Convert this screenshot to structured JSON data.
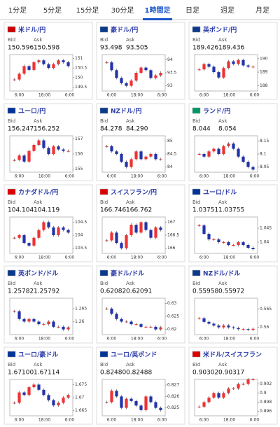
{
  "tabs": [
    "1分足",
    "5分足",
    "15分足",
    "30分足",
    "1時間足",
    "日足",
    "週足",
    "月足"
  ],
  "active_tab": 4,
  "labels": {
    "bid": "Bid",
    "ask": "Ask"
  },
  "xlabels": [
    "6:00",
    "18:00",
    "6:00"
  ],
  "panels": [
    {
      "title": "米ドル/円",
      "bid": "150.596",
      "ask": "150.598",
      "ylim": [
        149.3,
        151.2
      ],
      "yticks": [
        151,
        150.5,
        150,
        149.5
      ],
      "closes": [
        149.9,
        150.2,
        150.6,
        150.4,
        150.8,
        150.9,
        150.7,
        150.5,
        150.7,
        150.9,
        150.8,
        150.6
      ]
    },
    {
      "title": "豪ドル/円",
      "bid": "93.498",
      "ask": "93.505",
      "ylim": [
        92.8,
        94.2
      ],
      "yticks": [
        94,
        93.5,
        93
      ],
      "closes": [
        93.9,
        93.6,
        93.3,
        93.1,
        93.0,
        93.2,
        93.5,
        93.7,
        93.6,
        93.3,
        93.4,
        93.5
      ]
    },
    {
      "title": "英ポンド/円",
      "bid": "189.426",
      "ask": "189.436",
      "ylim": [
        187.6,
        190.3
      ],
      "yticks": [
        190,
        189,
        188
      ],
      "closes": [
        189.2,
        189.6,
        189.4,
        189.0,
        188.6,
        189.3,
        189.8,
        189.6,
        189.9,
        189.5,
        189.4,
        189.4
      ]
    },
    {
      "title": "ユーロ/円",
      "bid": "156.247",
      "ask": "156.252",
      "ylim": [
        154.8,
        157.2
      ],
      "yticks": [
        157,
        156,
        155
      ],
      "closes": [
        155.6,
        155.9,
        155.5,
        156.2,
        156.6,
        156.9,
        156.4,
        156.0,
        156.5,
        156.3,
        156.2,
        156.2
      ]
    },
    {
      "title": "NZドル/円",
      "bid": "84.278",
      "ask": "84.290",
      "ylim": [
        83.8,
        85.2
      ],
      "yticks": [
        85,
        84.5,
        84
      ],
      "closes": [
        84.8,
        84.6,
        84.5,
        84.2,
        84.0,
        84.3,
        84.6,
        84.3,
        84.4,
        84.5,
        84.3,
        84.3
      ]
    },
    {
      "title": "ランド/円",
      "bid": "8.044",
      "ask": "8.054",
      "ylim": [
        8.03,
        8.17
      ],
      "yticks": [
        8.15,
        8.1,
        8.05
      ],
      "closes": [
        8.1,
        8.09,
        8.11,
        8.12,
        8.1,
        8.13,
        8.14,
        8.12,
        8.09,
        8.07,
        8.05,
        8.04
      ]
    },
    {
      "title": "カナダドル/円",
      "bid": "104.104",
      "ask": "104.119",
      "ylim": [
        103.3,
        104.7
      ],
      "yticks": [
        104.5,
        104,
        103.5
      ],
      "closes": [
        103.9,
        104.0,
        103.7,
        103.6,
        103.9,
        104.2,
        104.5,
        104.3,
        104.0,
        104.3,
        104.2,
        104.1
      ]
    },
    {
      "title": "スイスフラン/円",
      "bid": "166.746",
      "ask": "166.762",
      "ylim": [
        165.8,
        167.2
      ],
      "yticks": [
        167,
        166.5,
        166
      ],
      "closes": [
        166.3,
        166.6,
        166.2,
        166.0,
        166.5,
        166.9,
        166.6,
        167.0,
        166.7,
        166.4,
        166.8,
        166.7
      ]
    },
    {
      "title": "ユーロ/ドル",
      "bid": "1.03751",
      "ask": "1.03755",
      "ylim": [
        1.036,
        1.049
      ],
      "yticks": [
        1.045,
        1.04
      ],
      "closes": [
        1.046,
        1.043,
        1.041,
        1.041,
        1.04,
        1.04,
        1.039,
        1.039,
        1.04,
        1.039,
        1.038,
        1.0375
      ]
    },
    {
      "title": "英ポンド/ドル",
      "bid": "1.25782",
      "ask": "1.25792",
      "ylim": [
        1.255,
        1.269
      ],
      "yticks": [
        1.265,
        1.26
      ],
      "closes": [
        1.264,
        1.261,
        1.26,
        1.261,
        1.26,
        1.259,
        1.259,
        1.26,
        1.258,
        1.258,
        1.257,
        1.2578
      ]
    },
    {
      "title": "豪ドル/ドル",
      "bid": "0.62082",
      "ask": "0.62091",
      "ylim": [
        0.618,
        0.632
      ],
      "yticks": [
        0.63,
        0.625,
        0.62
      ],
      "closes": [
        0.628,
        0.626,
        0.624,
        0.623,
        0.623,
        0.622,
        0.622,
        0.621,
        0.621,
        0.621,
        0.62,
        0.6208
      ]
    },
    {
      "title": "NZドル/ドル",
      "bid": "0.55958",
      "ask": "0.55972",
      "ylim": [
        0.558,
        0.568
      ],
      "yticks": [
        0.565,
        0.56
      ],
      "closes": [
        0.5625,
        0.5615,
        0.561,
        0.5605,
        0.56,
        0.5605,
        0.56,
        0.5598,
        0.5595,
        0.5595,
        0.5593,
        0.5596
      ]
    },
    {
      "title": "ユーロ/豪ドル",
      "bid": "1.67100",
      "ask": "1.67114",
      "ylim": [
        1.663,
        1.677
      ],
      "yticks": [
        1.675,
        1.67,
        1.665
      ],
      "closes": [
        1.668,
        1.672,
        1.671,
        1.674,
        1.675,
        1.673,
        1.671,
        1.669,
        1.667,
        1.668,
        1.67,
        1.671
      ]
    },
    {
      "title": "ユーロ/英ポンド",
      "bid": "0.82480",
      "ask": "0.82488",
      "ylim": [
        0.8243,
        0.8275
      ],
      "yticks": [
        0.827,
        0.826,
        0.825
      ],
      "closes": [
        0.8255,
        0.8265,
        0.826,
        0.825,
        0.8258,
        0.8256,
        0.8252,
        0.8248,
        0.826,
        0.8255,
        0.825,
        0.8248
      ]
    },
    {
      "title": "米ドル/スイスフラン",
      "bid": "0.90302",
      "ask": "0.90317",
      "ylim": [
        0.895,
        0.903
      ],
      "yticks": [
        0.902,
        0.9,
        0.898,
        0.896
      ],
      "closes": [
        0.897,
        0.898,
        0.899,
        0.9,
        0.899,
        0.9,
        0.901,
        0.901,
        0.902,
        0.902,
        0.903,
        0.903
      ]
    }
  ]
}
